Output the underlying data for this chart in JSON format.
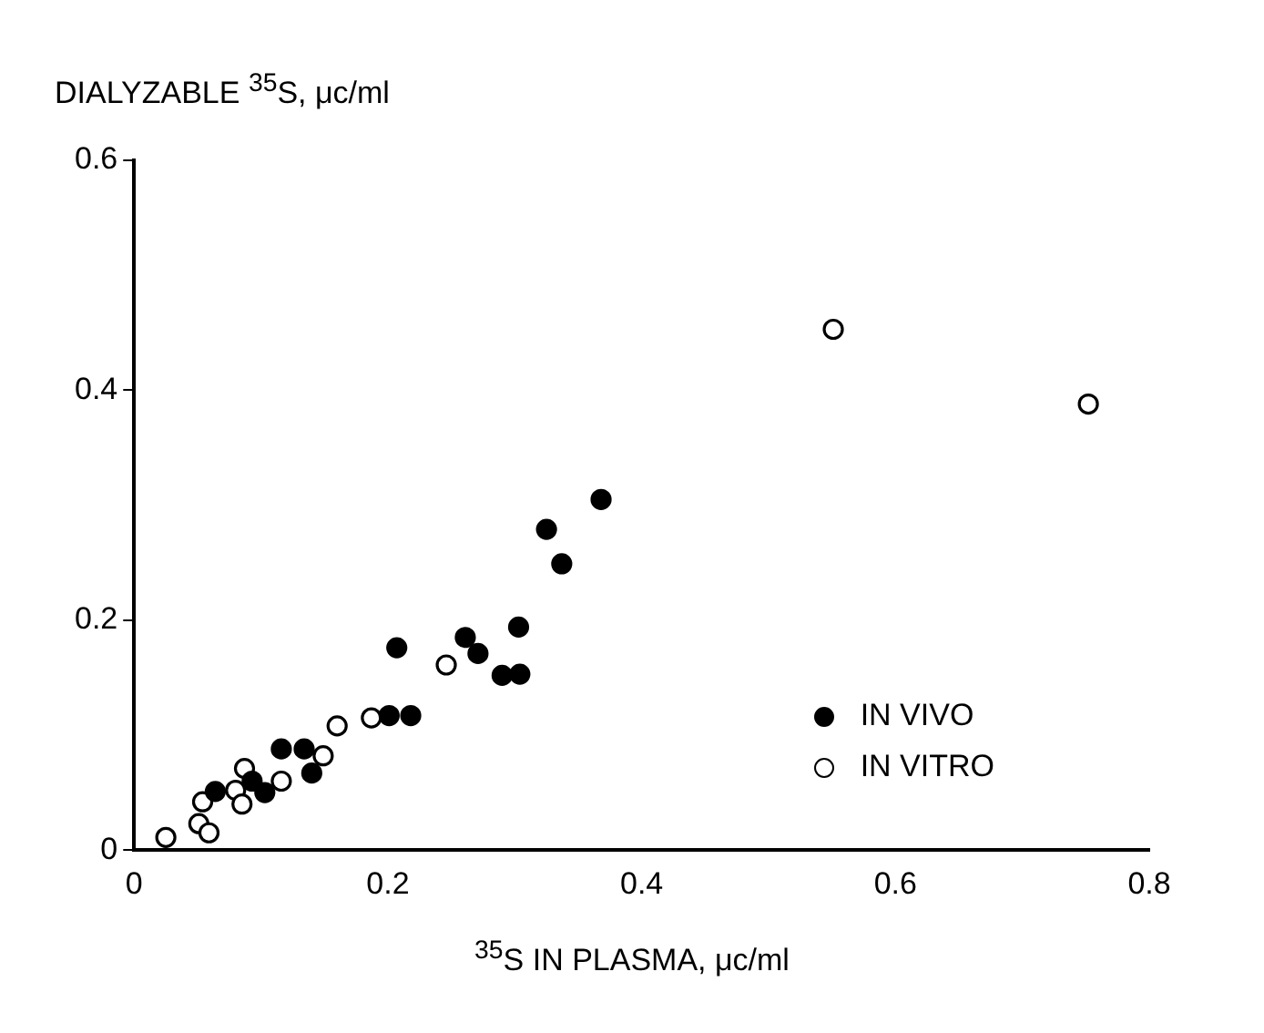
{
  "chart_data": {
    "type": "scatter",
    "xlabel": "$^{35}$S IN PLASMA, μc/ml",
    "ylabel": "DIALYZABLE $^{35}$S, μc/ml",
    "xlim": [
      0,
      0.8
    ],
    "xticks": [
      0,
      0.2,
      0.4,
      0.6,
      0.8
    ],
    "ylim": [
      0,
      0.6
    ],
    "yticks": [
      0,
      0.2,
      0.4,
      0.6
    ],
    "grid": false,
    "legend": "right",
    "marker": "circle",
    "series": [
      {
        "name": "IN VIVO",
        "color": "#000000",
        "x": [
          0.325,
          0.337,
          0.368,
          0.303,
          0.261,
          0.271,
          0.207,
          0.29,
          0.304,
          0.201,
          0.218,
          0.116,
          0.134,
          0.14,
          0.093,
          0.103,
          0.064
        ],
        "values": [
          0.279,
          0.249,
          0.305,
          0.194,
          0.185,
          0.171,
          0.176,
          0.152,
          0.153,
          0.117,
          0.117,
          0.088,
          0.088,
          0.067,
          0.06,
          0.05,
          0.051
        ]
      },
      {
        "name": "IN VITRO",
        "color": "#ffffff",
        "x": [
          0.551,
          0.752,
          0.246,
          0.187,
          0.16,
          0.149,
          0.116,
          0.087,
          0.08,
          0.085,
          0.054,
          0.051,
          0.059,
          0.025
        ],
        "values": [
          0.453,
          0.388,
          0.161,
          0.115,
          0.108,
          0.082,
          0.06,
          0.071,
          0.052,
          0.04,
          0.042,
          0.023,
          0.015,
          0.011
        ]
      }
    ]
  }
}
